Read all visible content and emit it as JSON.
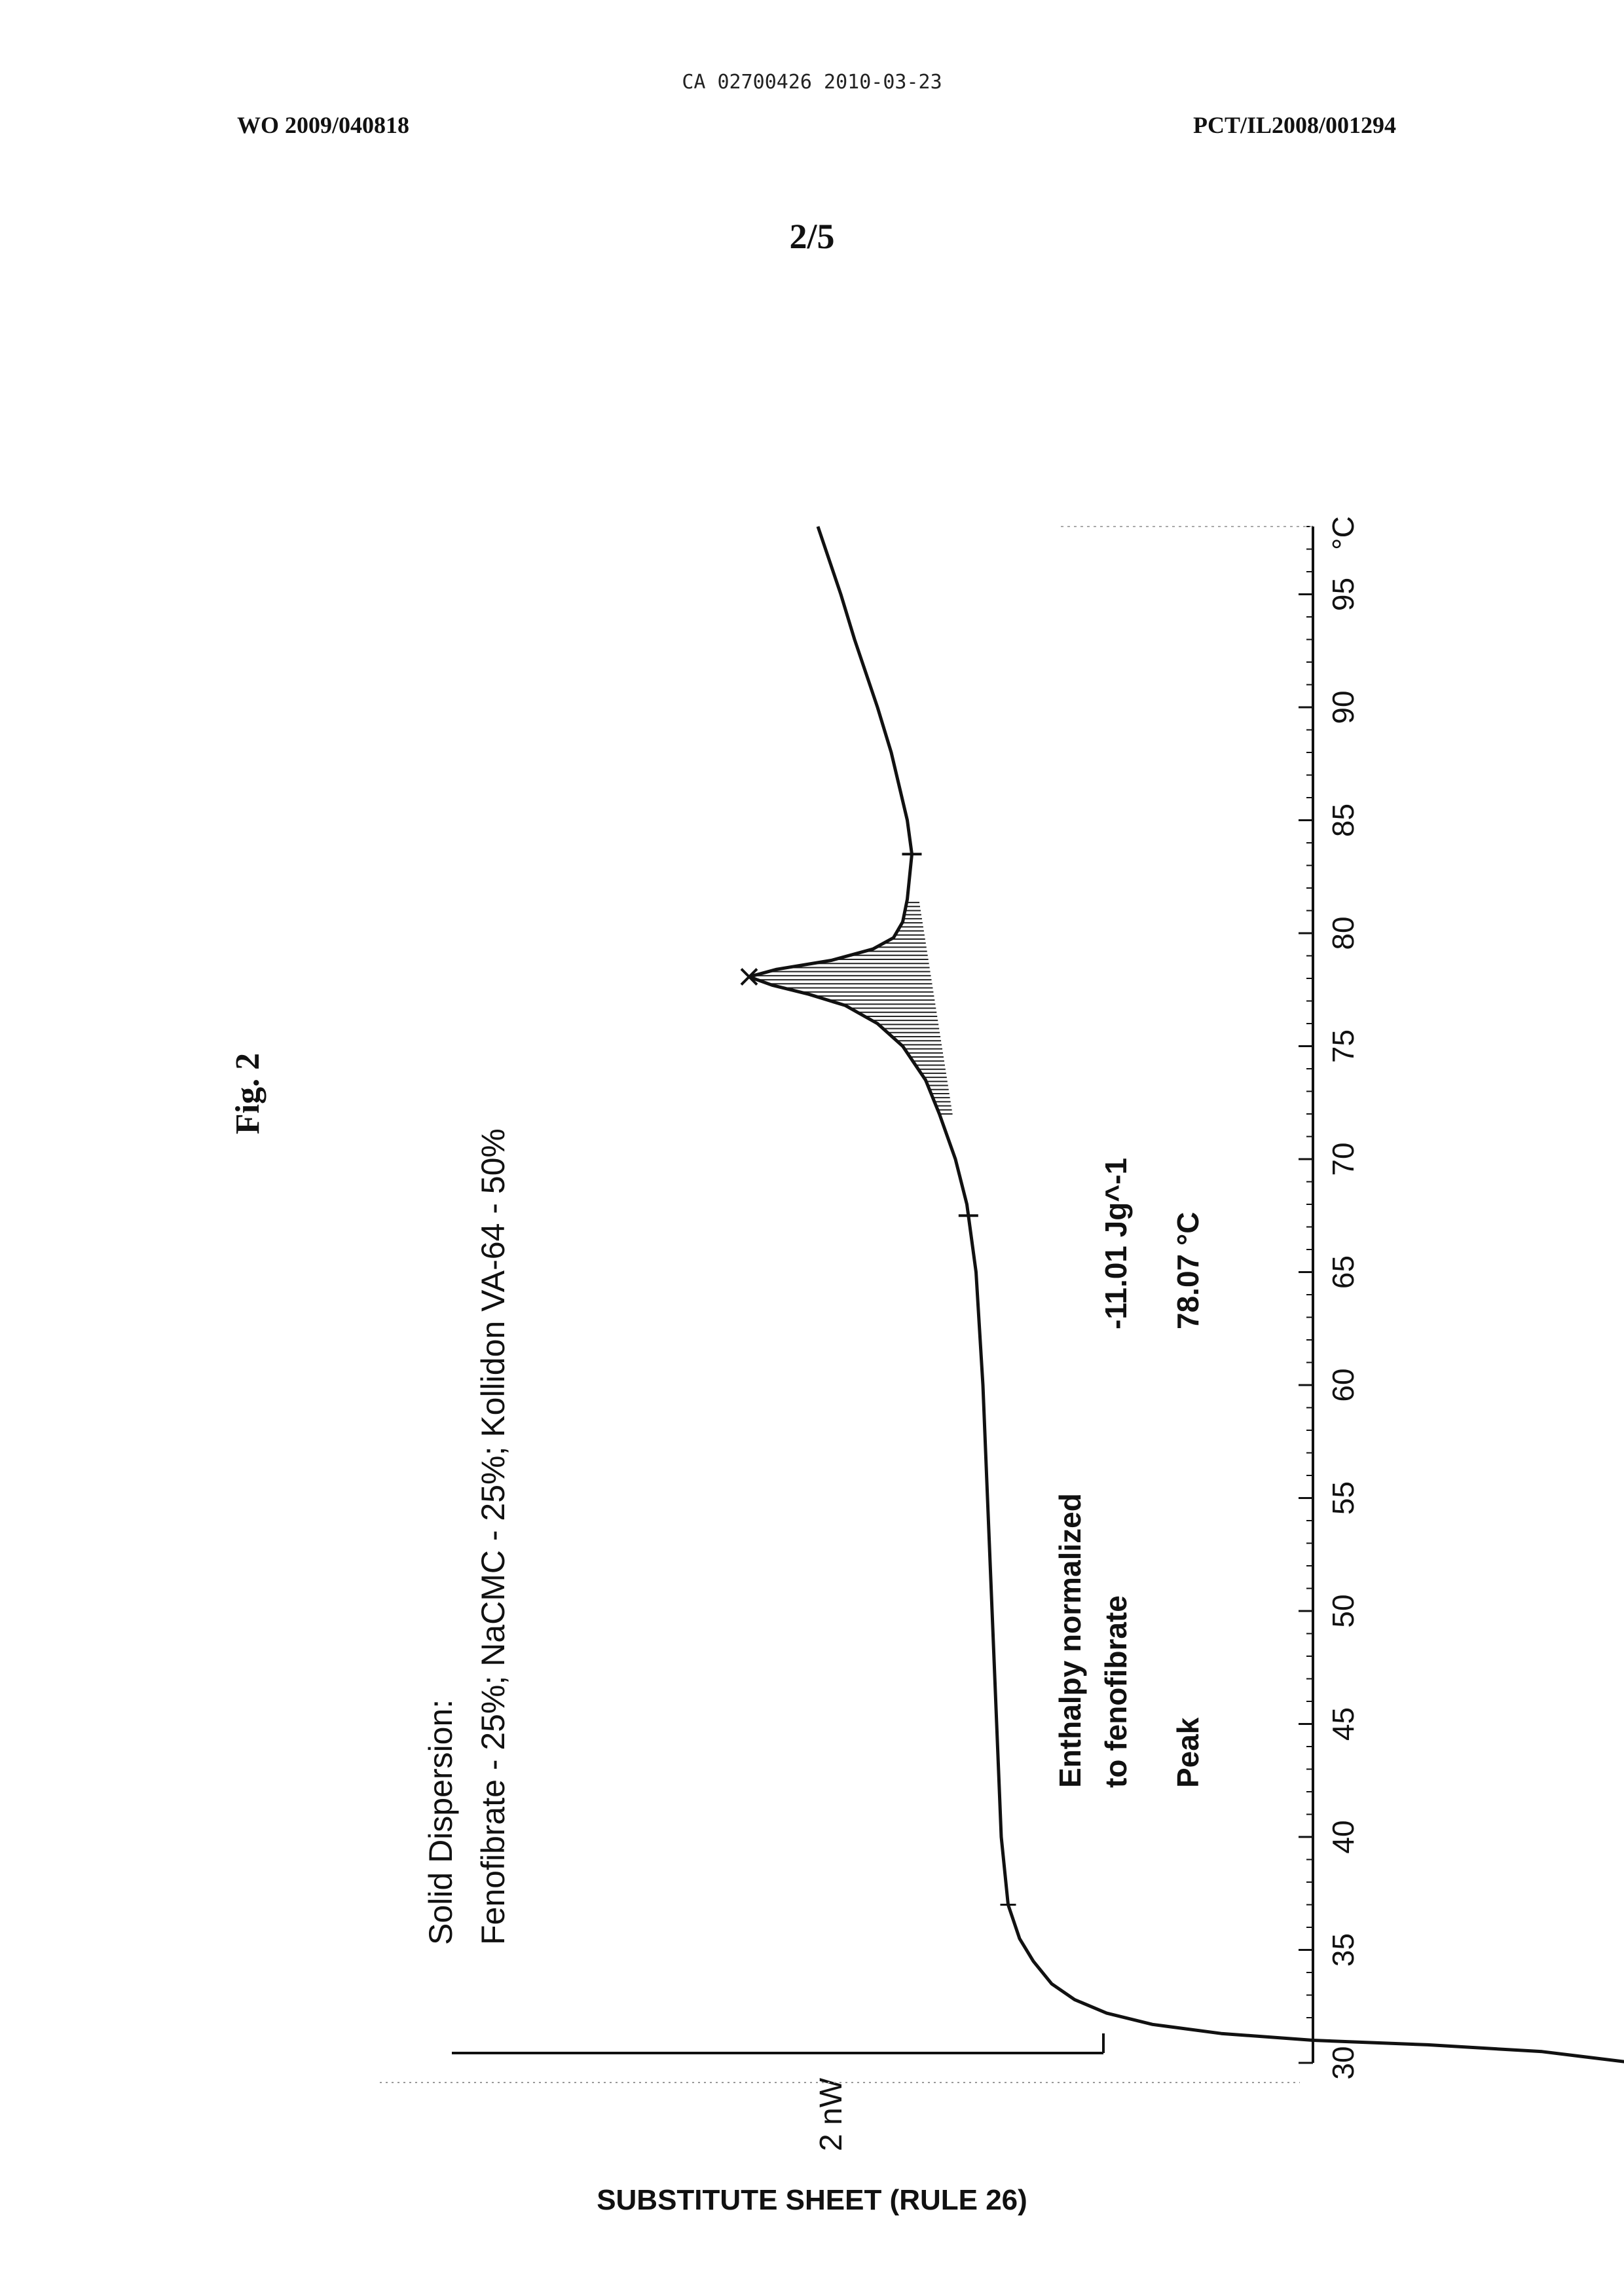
{
  "header": {
    "ca_line": "CA 02700426 2010-03-23",
    "wo_number": "WO 2009/040818",
    "pct_number": "PCT/IL2008/001294",
    "sheet": "2/5"
  },
  "figure_label": "Fig. 2",
  "footer": "SUBSTITUTE SHEET (RULE 26)",
  "chart_data": {
    "type": "line",
    "title_lines": [
      "Solid Dispersion:",
      "Fenofibrate - 25%; NaCMC - 25%; Kollidon VA-64 - 50%"
    ],
    "xlabel": "",
    "x_unit": "°C",
    "ylabel": "",
    "scale_bar_label": "2 nW",
    "xlim": [
      30,
      98
    ],
    "x_ticks": [
      "30",
      "35",
      "40",
      "45",
      "50",
      "55",
      "60",
      "65",
      "70",
      "75",
      "80",
      "85",
      "90",
      "95"
    ],
    "series": [
      {
        "x": [
          30.0,
          30.5,
          30.8,
          31.0,
          31.3,
          31.7,
          32.2,
          32.8,
          33.5,
          34.5,
          35.5,
          37.0,
          40,
          45,
          50,
          55,
          60,
          65,
          68,
          70,
          72,
          73.5,
          75,
          76,
          76.8,
          77.3,
          77.7,
          78.07,
          78.4,
          78.8,
          79.3,
          79.8,
          80.5,
          81.5,
          83.5,
          85,
          88,
          90,
          93,
          95,
          98
        ],
        "y": [
          14.0,
          12.0,
          9.5,
          7.0,
          5.0,
          3.5,
          2.5,
          1.8,
          1.3,
          0.9,
          0.6,
          0.35,
          0.2,
          0.1,
          0.0,
          -0.1,
          -0.2,
          -0.35,
          -0.55,
          -0.8,
          -1.15,
          -1.45,
          -1.95,
          -2.5,
          -3.2,
          -4.0,
          -4.8,
          -5.3,
          -4.7,
          -3.5,
          -2.6,
          -2.15,
          -1.95,
          -1.85,
          -1.75,
          -1.85,
          -2.2,
          -2.5,
          -3.0,
          -3.3,
          -3.8
        ]
      }
    ],
    "integration_limits": [
      "67.5",
      "83.5"
    ],
    "extra_marker_x": "37",
    "annotations": {
      "enthalpy_label_line1": "Enthalpy normalized",
      "enthalpy_label_line2": "to fenofibrate",
      "enthalpy_value": "-11.01 Jg^-1",
      "peak_label": "Peak",
      "peak_value": "78.07 °C"
    }
  }
}
